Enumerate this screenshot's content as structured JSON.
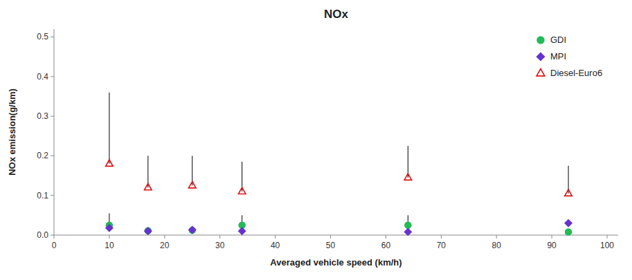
{
  "chart_data": {
    "type": "scatter",
    "title": "NOx",
    "x_label": "Averaged vehicle speed (km/h)",
    "y_label": "NOx emission(g/km)",
    "x": [
      10,
      17,
      25,
      34,
      64,
      93
    ],
    "xlim": [
      0,
      102
    ],
    "ylim": [
      0,
      0.52
    ],
    "xticks": [
      0,
      10,
      20,
      30,
      40,
      50,
      60,
      70,
      80,
      90,
      100
    ],
    "yticks": [
      {
        "value": 0.0,
        "label": "0.0"
      },
      0.1,
      0.2,
      0.3,
      0.4,
      0.5
    ],
    "grid": false,
    "legend": "upper-right",
    "series": [
      {
        "name": "GDI",
        "color": "#22bb55",
        "marker": "circle",
        "values": [
          0.025,
          0.011,
          0.012,
          0.025,
          0.025,
          0.008
        ],
        "errors_low": [
          0.0,
          0.0,
          0.0,
          0.0,
          0.0,
          0.0
        ],
        "errors_high": [
          0.03,
          0.005,
          0.005,
          0.025,
          0.025,
          0.003
        ]
      },
      {
        "name": "MPI",
        "color": "#6633cc",
        "marker": "diamond",
        "values": [
          0.018,
          0.01,
          0.013,
          0.01,
          0.008,
          0.03
        ]
      },
      {
        "name": "Diesel-Euro6",
        "color": "#dd1111",
        "marker": "open-triangle",
        "values": [
          0.18,
          0.12,
          0.125,
          0.11,
          0.145,
          0.105
        ],
        "errors_low": [
          0.0,
          0.0,
          0.0,
          0.0,
          0.0,
          0.0
        ],
        "errors_high": [
          0.18,
          0.08,
          0.075,
          0.075,
          0.08,
          0.07
        ]
      }
    ]
  }
}
